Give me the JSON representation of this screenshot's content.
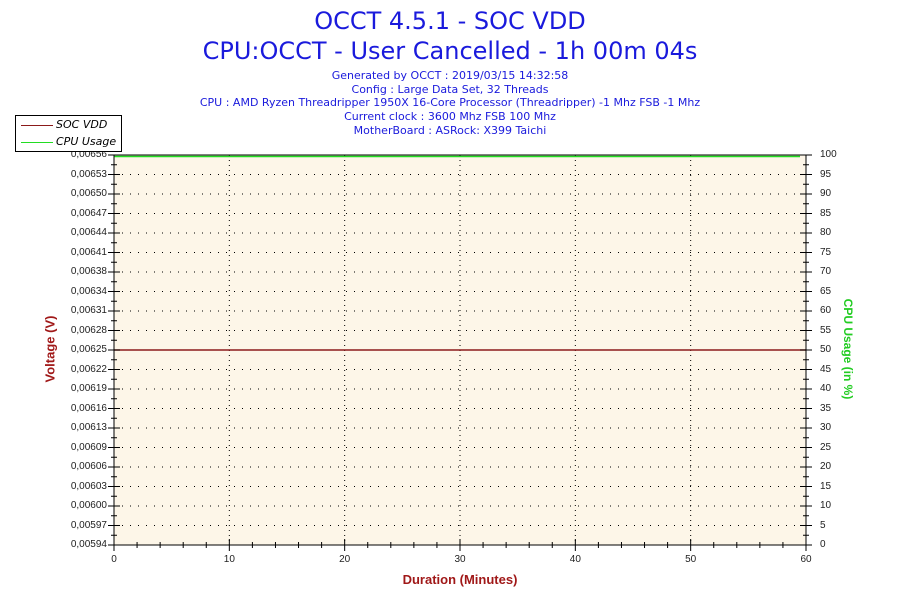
{
  "header": {
    "title": "OCCT 4.5.1 - SOC VDD",
    "subtitle": "CPU:OCCT - User Cancelled - 1h 00m 04s",
    "info_lines": [
      "Generated by OCCT : 2019/03/15 14:32:58",
      "Config : Large Data Set, 32 Threads",
      "CPU : AMD Ryzen Threadripper 1950X 16-Core Processor (Threadripper) -1 Mhz FSB -1 Mhz",
      "Current clock : 3600 Mhz FSB 100 Mhz",
      "MotherBoard : ASRock: X399 Taichi"
    ]
  },
  "legend": {
    "items": [
      {
        "label": "SOC VDD",
        "color": "#8b1a1a"
      },
      {
        "label": "CPU Usage",
        "color": "#22dd22"
      }
    ]
  },
  "colors": {
    "title": "#1a1adc",
    "plot_background": "#fdf6e8",
    "voltage_axis_label": "#a01818",
    "cpu_axis_label": "#22cc22",
    "soc_vdd_line": "#8b1a1a",
    "cpu_usage_line": "#22dd22"
  },
  "chart_data": {
    "type": "line",
    "title": "OCCT 4.5.1 - SOC VDD",
    "subtitle": "CPU:OCCT - User Cancelled - 1h 00m 04s",
    "xlabel": "Duration (Minutes)",
    "ylabel": "Voltage (V)",
    "ylabel_right": "CPU Usage (in %)",
    "xlim": [
      0,
      60
    ],
    "ylim": [
      0.00594,
      0.00656
    ],
    "ylim_right": [
      0,
      100
    ],
    "x_ticks": [
      "0",
      "10",
      "20",
      "30",
      "40",
      "50",
      "60"
    ],
    "y_ticks_left": [
      "0,00656",
      "0,00653",
      "0,00650",
      "0,00647",
      "0,00644",
      "0,00641",
      "0,00638",
      "0,00634",
      "0,00631",
      "0,00628",
      "0,00625",
      "0,00622",
      "0,00619",
      "0,00616",
      "0,00613",
      "0,00609",
      "0,00606",
      "0,00603",
      "0,00600",
      "0,00597",
      "0,00594"
    ],
    "y_ticks_right": [
      "100",
      "95",
      "90",
      "85",
      "80",
      "75",
      "70",
      "65",
      "60",
      "55",
      "50",
      "45",
      "40",
      "35",
      "30",
      "25",
      "20",
      "15",
      "10",
      "5",
      "0"
    ],
    "grid": "dotted",
    "legend_position": "top-left",
    "series": [
      {
        "name": "SOC VDD",
        "axis": "left",
        "x": [
          0,
          60
        ],
        "values": [
          0.00625,
          0.00625
        ]
      },
      {
        "name": "CPU Usage",
        "axis": "right",
        "x": [
          0,
          60
        ],
        "values": [
          100,
          100
        ]
      }
    ]
  }
}
